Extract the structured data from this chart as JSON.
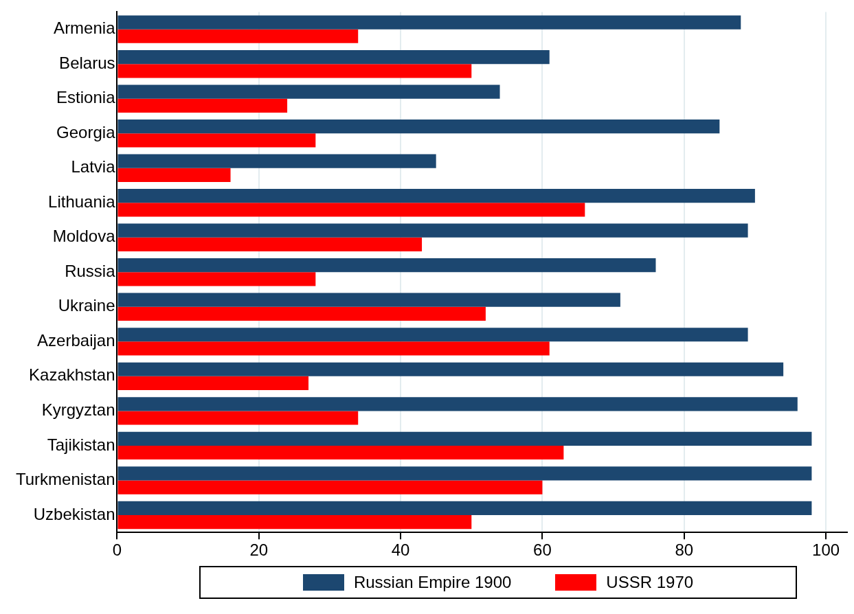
{
  "chart_data": {
    "type": "bar",
    "orientation": "horizontal",
    "categories": [
      "Armenia",
      "Belarus",
      "Estionia",
      "Georgia",
      "Latvia",
      "Lithuania",
      "Moldova",
      "Russia",
      "Ukraine",
      "Azerbaijan",
      "Kazakhstan",
      "Kyrgyztan",
      "Tajikistan",
      "Turkmenistan",
      "Uzbekistan"
    ],
    "series": [
      {
        "name": "Russian Empire 1900",
        "color": "#1c4770",
        "values": [
          88,
          61,
          54,
          85,
          45,
          90,
          89,
          76,
          71,
          89,
          94,
          96,
          98,
          98,
          98
        ]
      },
      {
        "name": "USSR 1970",
        "color": "#ff0000",
        "values": [
          34,
          50,
          24,
          28,
          16,
          66,
          43,
          28,
          52,
          61,
          27,
          34,
          63,
          60,
          50
        ]
      }
    ],
    "xlim": [
      0,
      103
    ],
    "xticks": [
      0,
      20,
      40,
      60,
      80,
      100
    ],
    "grid": "x",
    "legend": "bottom"
  }
}
